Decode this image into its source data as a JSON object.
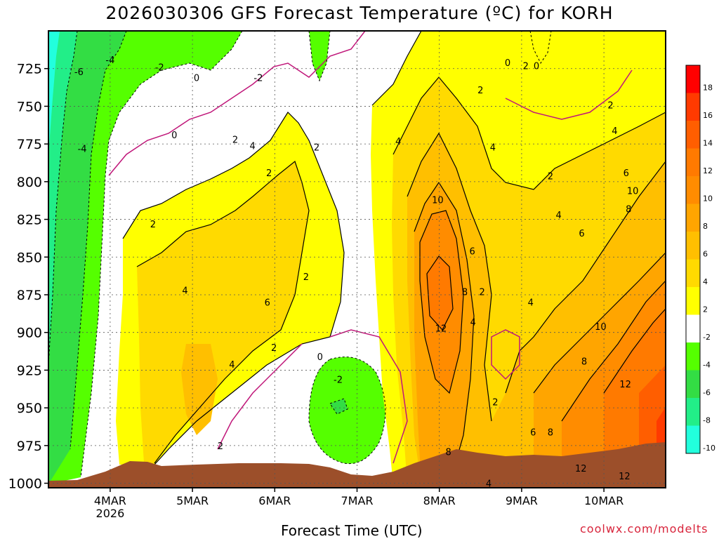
{
  "chart_data": {
    "type": "contour",
    "title": "2026030306 GFS Forecast Temperature (ºC) for KORH",
    "xlabel": "Forecast Time (UTC)",
    "ylabel": "",
    "credit": "coolwx.com/modelts",
    "x_ticks": [
      "4MAR",
      "5MAR",
      "6MAR",
      "7MAR",
      "8MAR",
      "9MAR",
      "10MAR"
    ],
    "x_tick_year": "2026",
    "xlim_days": [
      3.25,
      10.75
    ],
    "y_ticks": [
      725,
      750,
      775,
      800,
      825,
      850,
      875,
      900,
      925,
      950,
      975,
      1000
    ],
    "ylim_hpa": [
      1003,
      700
    ],
    "grid": "dotted",
    "colorbar": {
      "labels": [
        "18",
        "16",
        "14",
        "12",
        "10",
        "8",
        "6",
        "4",
        "2",
        "-2",
        "-4",
        "-6",
        "-8",
        "-10"
      ],
      "colors": [
        "#ff0000",
        "#ff3a00",
        "#ff5e00",
        "#ff7a00",
        "#ff8c00",
        "#ffa500",
        "#ffbf00",
        "#ffda00",
        "#ffff00",
        "#ffffff",
        "#55ff00",
        "#33dd44",
        "#22ee88",
        "#22ffdd"
      ]
    },
    "contour_labels": [
      {
        "text": "-6",
        "day": 3.62,
        "p": 727
      },
      {
        "text": "-4",
        "day": 4.0,
        "p": 719
      },
      {
        "text": "-2",
        "day": 4.6,
        "p": 724
      },
      {
        "text": "0",
        "day": 5.05,
        "p": 731
      },
      {
        "text": "-2",
        "day": 5.8,
        "p": 731
      },
      {
        "text": "-4",
        "day": 3.66,
        "p": 778
      },
      {
        "text": "0",
        "day": 4.78,
        "p": 769
      },
      {
        "text": "2",
        "day": 5.52,
        "p": 772
      },
      {
        "text": "4",
        "day": 5.73,
        "p": 776
      },
      {
        "text": "2",
        "day": 5.93,
        "p": 794
      },
      {
        "text": "2",
        "day": 6.51,
        "p": 777
      },
      {
        "text": "4",
        "day": 7.5,
        "p": 773
      },
      {
        "text": "2",
        "day": 8.5,
        "p": 739
      },
      {
        "text": "0",
        "day": 8.83,
        "p": 721
      },
      {
        "text": "2",
        "day": 9.05,
        "p": 723
      },
      {
        "text": "0",
        "day": 9.18,
        "p": 723
      },
      {
        "text": "2",
        "day": 10.08,
        "p": 749
      },
      {
        "text": "4",
        "day": 10.13,
        "p": 766
      },
      {
        "text": "4",
        "day": 8.65,
        "p": 777
      },
      {
        "text": "2",
        "day": 9.35,
        "p": 796
      },
      {
        "text": "6",
        "day": 10.27,
        "p": 794
      },
      {
        "text": "10",
        "day": 10.35,
        "p": 806
      },
      {
        "text": "8",
        "day": 10.3,
        "p": 818
      },
      {
        "text": "4",
        "day": 9.45,
        "p": 822
      },
      {
        "text": "6",
        "day": 9.73,
        "p": 834
      },
      {
        "text": "2",
        "day": 4.52,
        "p": 828
      },
      {
        "text": "10",
        "day": 7.98,
        "p": 812
      },
      {
        "text": "6",
        "day": 8.4,
        "p": 846
      },
      {
        "text": "2",
        "day": 6.38,
        "p": 863
      },
      {
        "text": "4",
        "day": 4.91,
        "p": 872
      },
      {
        "text": "6",
        "day": 5.91,
        "p": 880
      },
      {
        "text": "8",
        "day": 8.31,
        "p": 873
      },
      {
        "text": "2",
        "day": 8.52,
        "p": 873
      },
      {
        "text": "4",
        "day": 8.41,
        "p": 893
      },
      {
        "text": "4",
        "day": 9.11,
        "p": 880
      },
      {
        "text": "12",
        "day": 8.02,
        "p": 897
      },
      {
        "text": "10",
        "day": 9.96,
        "p": 896
      },
      {
        "text": "2",
        "day": 5.99,
        "p": 910
      },
      {
        "text": "0",
        "day": 6.55,
        "p": 916
      },
      {
        "text": "4",
        "day": 5.48,
        "p": 921
      },
      {
        "text": "8",
        "day": 9.76,
        "p": 919
      },
      {
        "text": "-2",
        "day": 6.77,
        "p": 931
      },
      {
        "text": "12",
        "day": 10.26,
        "p": 934
      },
      {
        "text": "2",
        "day": 8.68,
        "p": 946
      },
      {
        "text": "6",
        "day": 9.14,
        "p": 966
      },
      {
        "text": "8",
        "day": 9.35,
        "p": 966
      },
      {
        "text": "2",
        "day": 5.34,
        "p": 975
      },
      {
        "text": "8",
        "day": 8.11,
        "p": 979
      },
      {
        "text": "12",
        "day": 9.72,
        "p": 990
      },
      {
        "text": "4",
        "day": 8.6,
        "p": 1012
      },
      {
        "text": "12",
        "day": 10.25,
        "p": 995
      }
    ]
  }
}
